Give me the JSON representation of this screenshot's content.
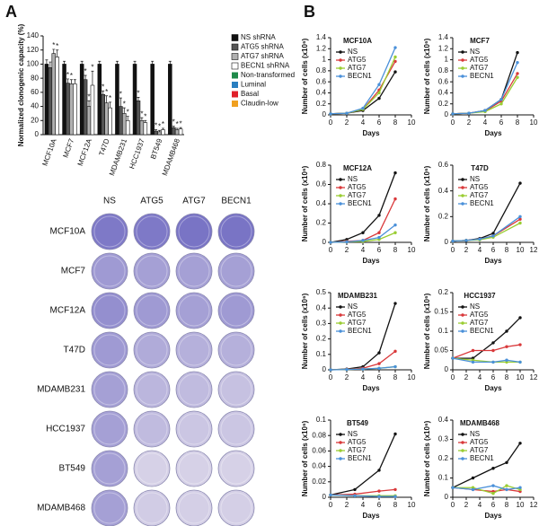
{
  "panel_labels": [
    "A",
    "B"
  ],
  "plates": {
    "columns": [
      "NS",
      "ATG5",
      "ATG7",
      "BECN1"
    ],
    "rows": [
      "MCF10A",
      "MCF7",
      "MCF12A",
      "T47D",
      "MDAMB231",
      "HCC1937",
      "BT549",
      "MDAMB468"
    ],
    "row_colors": [
      "#1e8a4a",
      "#2a7fc0",
      "#1e8a4a",
      "#2a7fc0",
      "#f0a020",
      "#e0202a",
      "#f0a020",
      "#e0202a"
    ]
  },
  "chart_data": [
    {
      "type": "bar",
      "ylabel": "Normalized clonogenic capacity (%)",
      "categories": [
        "MCF10A",
        "MCF7",
        "MCF12A",
        "T47D",
        "MDAMB231",
        "HCC1937",
        "BT549",
        "MDAMB468"
      ],
      "category_colors": [
        "#1e8a4a",
        "#2a7fc0",
        "#1e8a4a",
        "#2a7fc0",
        "#f0a020",
        "#e0202a",
        "#f0a020",
        "#e0202a"
      ],
      "ylim": [
        0,
        140
      ],
      "yticks": [
        0,
        20,
        40,
        60,
        80,
        100,
        120,
        140
      ],
      "series": [
        {
          "name": "NS shRNA",
          "color": "#111111",
          "values": [
            100,
            100,
            100,
            100,
            100,
            100,
            100,
            100
          ],
          "errors": [
            6,
            4,
            4,
            4,
            4,
            4,
            4,
            4
          ],
          "stars": [
            null,
            null,
            null,
            null,
            null,
            null,
            null,
            null
          ]
        },
        {
          "name": "ATG5 shRNA",
          "color": "#555555",
          "values": [
            95,
            73,
            78,
            57,
            40,
            48,
            5,
            10
          ],
          "errors": [
            8,
            6,
            6,
            5,
            12,
            5,
            2,
            2
          ],
          "stars": [
            null,
            "*",
            "*",
            "*",
            "*",
            "*",
            "*",
            "*"
          ]
        },
        {
          "name": "ATG7 shRNA",
          "color": "#b0b0b0",
          "values": [
            115,
            72,
            40,
            45,
            30,
            20,
            4,
            7
          ],
          "errors": [
            6,
            6,
            8,
            10,
            8,
            4,
            2,
            2
          ],
          "stars": [
            "*",
            "*",
            "*",
            "*",
            "*",
            "*",
            "*",
            "*"
          ]
        },
        {
          "name": "BECN1 shRNA",
          "color": "#ffffff",
          "values": [
            110,
            72,
            70,
            38,
            20,
            17,
            7,
            8
          ],
          "errors": [
            10,
            6,
            20,
            8,
            6,
            3,
            2,
            2
          ],
          "stars": [
            "*",
            null,
            "*",
            "*",
            "*",
            "*",
            "*",
            "*"
          ]
        }
      ],
      "subtypes": [
        {
          "name": "Non-transformed",
          "color": "#1e8a4a"
        },
        {
          "name": "Luminal",
          "color": "#2a7fc0"
        },
        {
          "name": "Basal",
          "color": "#e0202a"
        },
        {
          "name": "Claudin-low",
          "color": "#f0a020"
        }
      ]
    },
    {
      "type": "line",
      "title": "MCF10A",
      "title_color": "#1e8a4a",
      "xlabel": "Days",
      "ylabel": "Number of cells (x10⁶)",
      "x": [
        0,
        2,
        4,
        6,
        8
      ],
      "xlim": [
        0,
        10
      ],
      "xticks": [
        0,
        2,
        4,
        6,
        8,
        10
      ],
      "ylim": [
        0,
        1.4
      ],
      "yticks": [
        0,
        0.2,
        0.4,
        0.6,
        0.8,
        1,
        1.2,
        1.4
      ],
      "series": [
        {
          "name": "NS",
          "color": "#111111",
          "values": [
            0.02,
            0.03,
            0.08,
            0.3,
            0.78
          ]
        },
        {
          "name": "ATG5",
          "color": "#d9383a",
          "values": [
            0.02,
            0.03,
            0.1,
            0.45,
            0.97
          ]
        },
        {
          "name": "ATG7",
          "color": "#9acd32",
          "values": [
            0.02,
            0.03,
            0.1,
            0.4,
            1.05
          ]
        },
        {
          "name": "BECN1",
          "color": "#4a90d9",
          "values": [
            0.02,
            0.03,
            0.12,
            0.55,
            1.22
          ]
        }
      ]
    },
    {
      "type": "line",
      "title": "MCF7",
      "title_color": "#2a7fc0",
      "xlabel": "Days",
      "ylabel": "Number of cells (x10⁶)",
      "x": [
        0,
        2,
        4,
        6,
        8
      ],
      "xlim": [
        0,
        10
      ],
      "xticks": [
        0,
        2,
        4,
        6,
        8,
        10
      ],
      "ylim": [
        0,
        1.4
      ],
      "yticks": [
        0,
        0.2,
        0.4,
        0.6,
        0.8,
        1,
        1.2,
        1.4
      ],
      "series": [
        {
          "name": "NS",
          "color": "#111111",
          "values": [
            0.02,
            0.03,
            0.08,
            0.28,
            1.13
          ]
        },
        {
          "name": "ATG5",
          "color": "#d9383a",
          "values": [
            0.02,
            0.03,
            0.07,
            0.25,
            0.75
          ]
        },
        {
          "name": "ATG7",
          "color": "#9acd32",
          "values": [
            0.02,
            0.03,
            0.06,
            0.2,
            0.68
          ]
        },
        {
          "name": "BECN1",
          "color": "#4a90d9",
          "values": [
            0.02,
            0.03,
            0.08,
            0.28,
            0.95
          ]
        }
      ]
    },
    {
      "type": "line",
      "title": "MCF12A",
      "title_color": "#1e8a4a",
      "xlabel": "Days",
      "ylabel": "Number of cells (x10⁶)",
      "x": [
        0,
        2,
        4,
        6,
        8
      ],
      "xlim": [
        0,
        10
      ],
      "xticks": [
        0,
        2,
        4,
        6,
        8,
        10
      ],
      "ylim": [
        0,
        0.8
      ],
      "yticks": [
        0,
        0.2,
        0.4,
        0.6,
        0.8
      ],
      "series": [
        {
          "name": "NS",
          "color": "#111111",
          "values": [
            0,
            0.03,
            0.1,
            0.28,
            0.72
          ]
        },
        {
          "name": "ATG5",
          "color": "#d9383a",
          "values": [
            0,
            0.01,
            0.02,
            0.1,
            0.45
          ]
        },
        {
          "name": "ATG7",
          "color": "#9acd32",
          "values": [
            0,
            0.005,
            0.01,
            0.03,
            0.1
          ]
        },
        {
          "name": "BECN1",
          "color": "#4a90d9",
          "values": [
            0,
            0.005,
            0.02,
            0.05,
            0.18
          ]
        }
      ]
    },
    {
      "type": "line",
      "title": "T47D",
      "title_color": "#2a7fc0",
      "xlabel": "Days",
      "ylabel": "Number of cells (x10⁶)",
      "x": [
        0,
        2,
        4,
        6,
        10
      ],
      "xlim": [
        0,
        12
      ],
      "xticks": [
        0,
        2,
        4,
        6,
        8,
        10,
        12
      ],
      "ylim": [
        0,
        0.6
      ],
      "yticks": [
        0,
        0.2,
        0.4,
        0.6
      ],
      "series": [
        {
          "name": "NS",
          "color": "#111111",
          "values": [
            0.01,
            0.015,
            0.03,
            0.07,
            0.46
          ]
        },
        {
          "name": "ATG5",
          "color": "#d9383a",
          "values": [
            0.01,
            0.015,
            0.025,
            0.05,
            0.18
          ]
        },
        {
          "name": "ATG7",
          "color": "#9acd32",
          "values": [
            0.01,
            0.015,
            0.02,
            0.04,
            0.15
          ]
        },
        {
          "name": "BECN1",
          "color": "#4a90d9",
          "values": [
            0.01,
            0.015,
            0.025,
            0.05,
            0.2
          ]
        }
      ]
    },
    {
      "type": "line",
      "title": "MDAMB231",
      "title_color": "#f0a020",
      "xlabel": "Days",
      "ylabel": "Number of cells (x10⁶)",
      "x": [
        0,
        2,
        4,
        6,
        8
      ],
      "xlim": [
        0,
        10
      ],
      "xticks": [
        0,
        2,
        4,
        6,
        8,
        10
      ],
      "ylim": [
        0,
        0.5
      ],
      "yticks": [
        0,
        0.1,
        0.2,
        0.3,
        0.4,
        0.5
      ],
      "series": [
        {
          "name": "NS",
          "color": "#111111",
          "values": [
            0,
            0.005,
            0.02,
            0.11,
            0.43
          ]
        },
        {
          "name": "ATG5",
          "color": "#d9383a",
          "values": [
            0,
            0.003,
            0.01,
            0.04,
            0.12
          ]
        },
        {
          "name": "ATG7",
          "color": "#9acd32",
          "values": [
            0,
            0.002,
            0.005,
            0.01,
            0.02
          ]
        },
        {
          "name": "BECN1",
          "color": "#4a90d9",
          "values": [
            0,
            0.002,
            0.005,
            0.01,
            0.02
          ]
        }
      ]
    },
    {
      "type": "line",
      "title": "HCC1937",
      "title_color": "#e0202a",
      "xlabel": "Days",
      "ylabel": "Number of cells (x10⁶)",
      "x": [
        0,
        3,
        6,
        8,
        10
      ],
      "xlim": [
        0,
        12
      ],
      "xticks": [
        0,
        2,
        4,
        6,
        8,
        10,
        12
      ],
      "ylim": [
        0,
        0.2
      ],
      "yticks": [
        0,
        0.05,
        0.1,
        0.15,
        0.2
      ],
      "series": [
        {
          "name": "NS",
          "color": "#111111",
          "values": [
            0.03,
            0.03,
            0.07,
            0.1,
            0.135
          ]
        },
        {
          "name": "ATG5",
          "color": "#d9383a",
          "values": [
            0.03,
            0.05,
            0.05,
            0.06,
            0.065
          ]
        },
        {
          "name": "ATG7",
          "color": "#9acd32",
          "values": [
            0.03,
            0.025,
            0.02,
            0.02,
            0.02
          ]
        },
        {
          "name": "BECN1",
          "color": "#4a90d9",
          "values": [
            0.03,
            0.02,
            0.02,
            0.025,
            0.02
          ]
        }
      ]
    },
    {
      "type": "line",
      "title": "BT549",
      "title_color": "#f0a020",
      "xlabel": "Days",
      "ylabel": "Number of cells (x10⁶)",
      "x": [
        0,
        3,
        6,
        8
      ],
      "xlim": [
        0,
        10
      ],
      "xticks": [
        0,
        2,
        4,
        6,
        8,
        10
      ],
      "ylim": [
        0,
        0.1
      ],
      "yticks": [
        0,
        0.02,
        0.04,
        0.06,
        0.08,
        0.1
      ],
      "series": [
        {
          "name": "NS",
          "color": "#111111",
          "values": [
            0.003,
            0.01,
            0.035,
            0.082
          ]
        },
        {
          "name": "ATG5",
          "color": "#d9383a",
          "values": [
            0.003,
            0.004,
            0.008,
            0.01
          ]
        },
        {
          "name": "ATG7",
          "color": "#9acd32",
          "values": [
            0.003,
            0.002,
            0.002,
            0.002
          ]
        },
        {
          "name": "BECN1",
          "color": "#4a90d9",
          "values": [
            0.003,
            0.002,
            0.001,
            0.001
          ]
        }
      ]
    },
    {
      "type": "line",
      "title": "MDAMB468",
      "title_color": "#e0202a",
      "xlabel": "Days",
      "ylabel": "Number of cells (x10⁶)",
      "x": [
        0,
        3,
        6,
        8,
        10
      ],
      "xlim": [
        0,
        12
      ],
      "xticks": [
        0,
        2,
        4,
        6,
        8,
        10,
        12
      ],
      "ylim": [
        0,
        0.4
      ],
      "yticks": [
        0,
        0.1,
        0.2,
        0.3,
        0.4
      ],
      "series": [
        {
          "name": "NS",
          "color": "#111111",
          "values": [
            0.05,
            0.1,
            0.15,
            0.18,
            0.28
          ]
        },
        {
          "name": "ATG5",
          "color": "#d9383a",
          "values": [
            0.05,
            0.04,
            0.03,
            0.04,
            0.03
          ]
        },
        {
          "name": "ATG7",
          "color": "#9acd32",
          "values": [
            0.05,
            0.05,
            0.02,
            0.06,
            0.04
          ]
        },
        {
          "name": "BECN1",
          "color": "#4a90d9",
          "values": [
            0.05,
            0.04,
            0.06,
            0.04,
            0.05
          ]
        }
      ]
    }
  ]
}
